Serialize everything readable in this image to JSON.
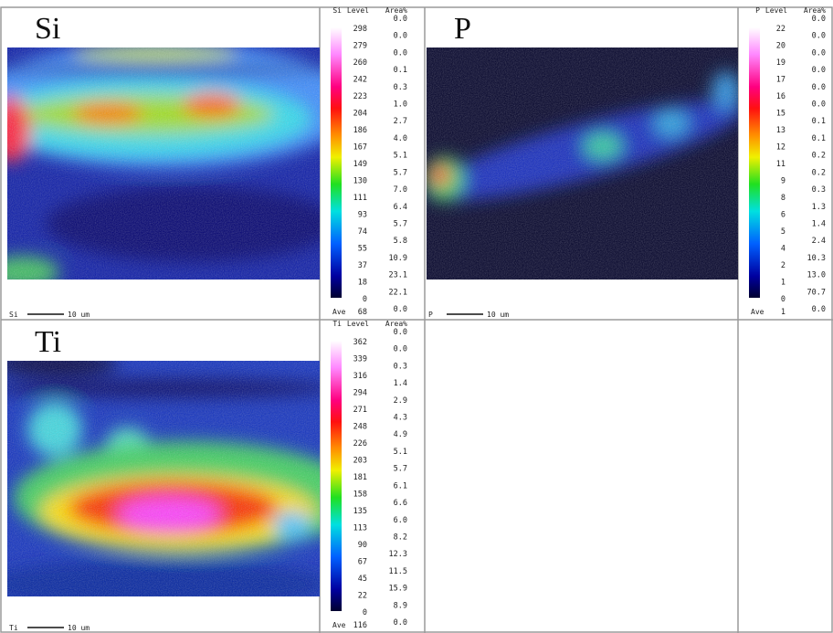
{
  "panels": [
    {
      "element": "Si",
      "scale_header": [
        "Si",
        "Level",
        "Area%"
      ],
      "levels": [
        298,
        279,
        260,
        242,
        223,
        204,
        186,
        167,
        149,
        130,
        111,
        93,
        74,
        55,
        37,
        18,
        0
      ],
      "areas": [
        "0.0",
        "0.0",
        "0.0",
        "0.1",
        "0.3",
        "1.0",
        "2.7",
        "4.0",
        "5.1",
        "5.7",
        "7.0",
        "6.4",
        "5.7",
        "5.8",
        "10.9",
        "23.1",
        "22.1",
        "0.0"
      ],
      "ave_label": "Ave",
      "ave": 68,
      "scalebar_element": "Si",
      "scalebar_length": "10 um"
    },
    {
      "element": "P",
      "scale_header": [
        "P",
        "Level",
        "Area%"
      ],
      "levels": [
        22,
        20,
        19,
        17,
        16,
        15,
        13,
        12,
        11,
        9,
        8,
        6,
        5,
        4,
        2,
        1,
        0
      ],
      "areas": [
        "0.0",
        "0.0",
        "0.0",
        "0.0",
        "0.0",
        "0.0",
        "0.1",
        "0.1",
        "0.2",
        "0.2",
        "0.3",
        "1.3",
        "1.4",
        "2.4",
        "10.3",
        "13.0",
        "70.7",
        "0.0"
      ],
      "ave_label": "Ave",
      "ave": 1,
      "scalebar_element": "P",
      "scalebar_length": "10 um"
    },
    {
      "element": "Ti",
      "scale_header": [
        "Ti",
        "Level",
        "Area%"
      ],
      "levels": [
        362,
        339,
        316,
        294,
        271,
        248,
        226,
        203,
        181,
        158,
        135,
        113,
        90,
        67,
        45,
        22,
        0
      ],
      "areas": [
        "0.0",
        "0.0",
        "0.3",
        "1.4",
        "2.9",
        "4.3",
        "4.9",
        "5.1",
        "5.7",
        "6.1",
        "6.6",
        "6.0",
        "8.2",
        "12.3",
        "11.5",
        "15.9",
        "8.9",
        "0.0"
      ],
      "ave_label": "Ave",
      "ave": 116,
      "scalebar_element": "Ti",
      "scalebar_length": "10 um"
    }
  ]
}
